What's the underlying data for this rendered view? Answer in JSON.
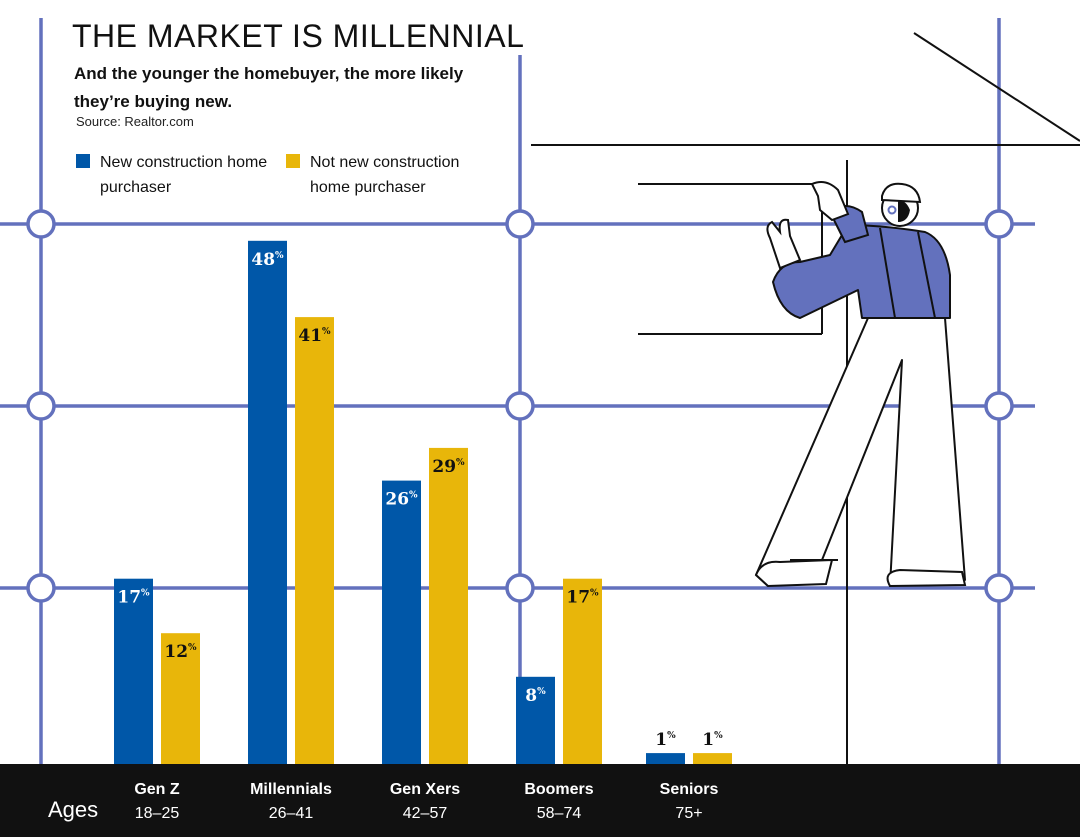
{
  "title": "THE MARKET IS MILLENNIAL",
  "subtitle": "And the younger the homebuyer, the more likely they’re buying new.",
  "source": "Source: Realtor.com",
  "axis_label": "Ages",
  "colors": {
    "new_construction": "#0057A8",
    "not_new_construction": "#E8B60A",
    "grid": "#6371BD",
    "figure_shirt": "#6371BD",
    "bottom_bar": "#111111"
  },
  "chart_data": {
    "type": "bar",
    "title": "THE MARKET IS MILLENNIAL",
    "categories": [
      "Gen Z",
      "Millennials",
      "Gen Xers",
      "Boomers",
      "Seniors"
    ],
    "category_ranges": [
      "18–25",
      "26–41",
      "42–57",
      "58–74",
      "75+"
    ],
    "series": [
      {
        "name": "New construction home purchaser",
        "values": [
          17,
          48,
          26,
          8,
          1
        ]
      },
      {
        "name": "Not new construction home purchaser",
        "values": [
          12,
          41,
          29,
          17,
          1
        ]
      }
    ],
    "value_suffix": "%",
    "xlabel": "Ages",
    "ylabel": "",
    "ylim": [
      0,
      48
    ],
    "grid": false,
    "legend": "top-left"
  }
}
